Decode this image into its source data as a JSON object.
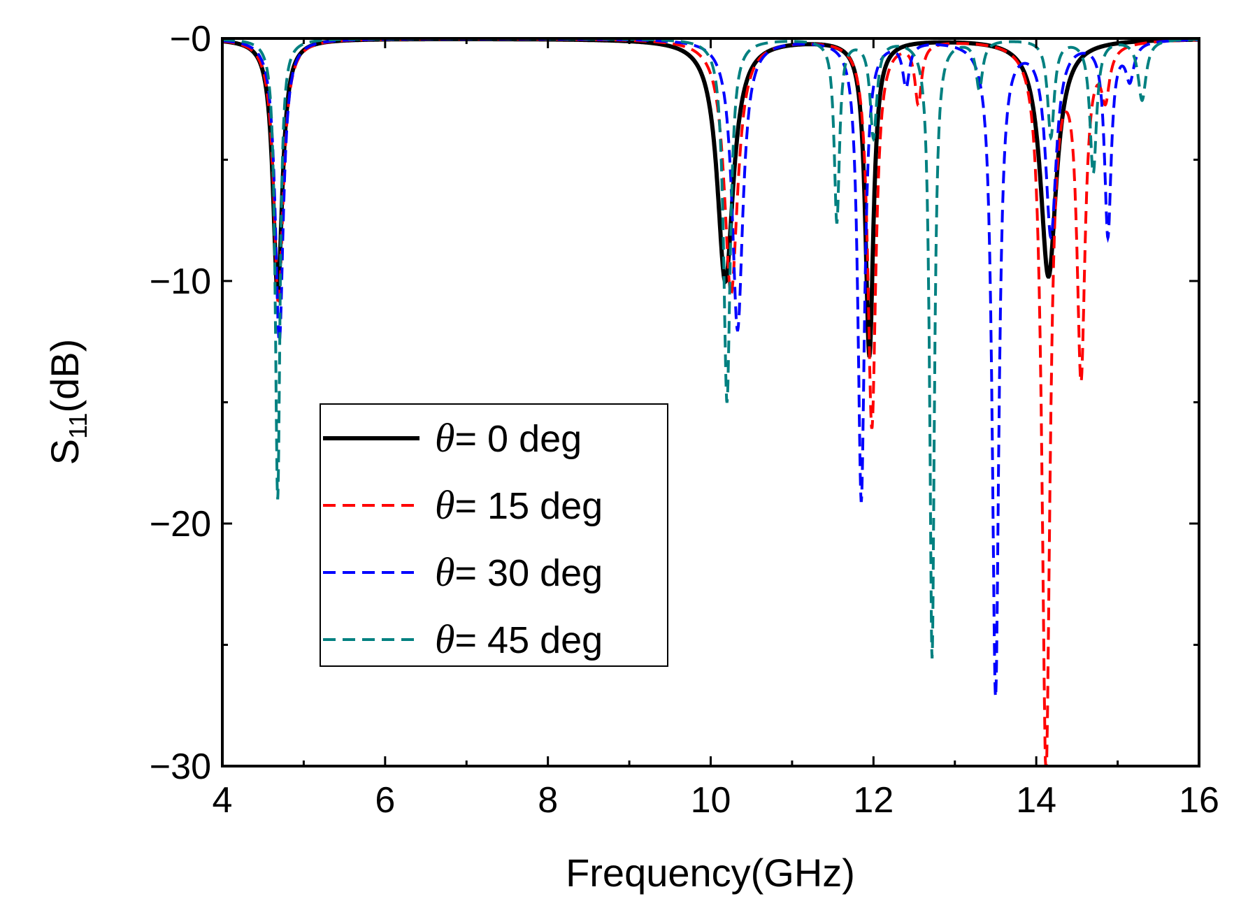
{
  "chart_data": {
    "type": "line",
    "title": "",
    "xlabel": "Frequency(GHz)",
    "ylabel": {
      "main": "S",
      "sub": "11",
      "unit": "(dB)"
    },
    "xlim": [
      4,
      16
    ],
    "ylim": [
      -30,
      0
    ],
    "xticks": [
      4,
      6,
      8,
      10,
      12,
      14,
      16
    ],
    "yticks": [
      0,
      -10,
      -20,
      -30
    ],
    "xtick_labels": [
      "4",
      "6",
      "8",
      "10",
      "12",
      "14",
      "16"
    ],
    "ytick_labels": [
      "−0",
      "−10",
      "−20",
      "−30"
    ],
    "grid": false,
    "legend_position": "center-left",
    "series": [
      {
        "name": "θ= 0 deg",
        "symbol": "θ",
        "label": "= 0 deg",
        "color": "#000000",
        "style": "solid",
        "dips": [
          [
            4.68,
            -10.5,
            0.07
          ],
          [
            10.18,
            -10.0,
            0.12
          ],
          [
            11.95,
            -13.0,
            0.06
          ],
          [
            14.15,
            -9.8,
            0.12
          ]
        ]
      },
      {
        "name": "θ= 15 deg",
        "symbol": "θ",
        "label": "= 15 deg",
        "color": "#ff0000",
        "style": "dashed",
        "dips": [
          [
            4.69,
            -11.0,
            0.07
          ],
          [
            10.25,
            -10.5,
            0.1
          ],
          [
            11.98,
            -16.0,
            0.06
          ],
          [
            12.55,
            -2.5,
            0.05
          ],
          [
            14.12,
            -30.0,
            0.06
          ],
          [
            14.55,
            -13.5,
            0.06
          ],
          [
            14.85,
            -2.0,
            0.06
          ]
        ]
      },
      {
        "name": "θ= 30 deg",
        "symbol": "θ",
        "label": "= 30 deg",
        "color": "#0000ff",
        "style": "dashed",
        "dips": [
          [
            4.7,
            -12.5,
            0.06
          ],
          [
            10.33,
            -12.0,
            0.08
          ],
          [
            11.85,
            -19.0,
            0.05
          ],
          [
            12.4,
            -1.8,
            0.05
          ],
          [
            13.5,
            -27.0,
            0.05
          ],
          [
            14.18,
            -8.0,
            0.08
          ],
          [
            14.88,
            -8.0,
            0.05
          ],
          [
            15.15,
            -1.5,
            0.06
          ]
        ]
      },
      {
        "name": "θ= 45 deg",
        "symbol": "θ",
        "label": "= 45 deg",
        "color": "#008080",
        "style": "dashed",
        "dips": [
          [
            4.68,
            -19.0,
            0.035
          ],
          [
            10.2,
            -15.0,
            0.05
          ],
          [
            11.55,
            -7.5,
            0.04
          ],
          [
            12.0,
            -4.0,
            0.05
          ],
          [
            12.72,
            -25.5,
            0.035
          ],
          [
            13.3,
            -2.0,
            0.05
          ],
          [
            14.18,
            -4.0,
            0.05
          ],
          [
            14.7,
            -5.5,
            0.05
          ],
          [
            15.3,
            -2.5,
            0.06
          ]
        ]
      }
    ]
  }
}
